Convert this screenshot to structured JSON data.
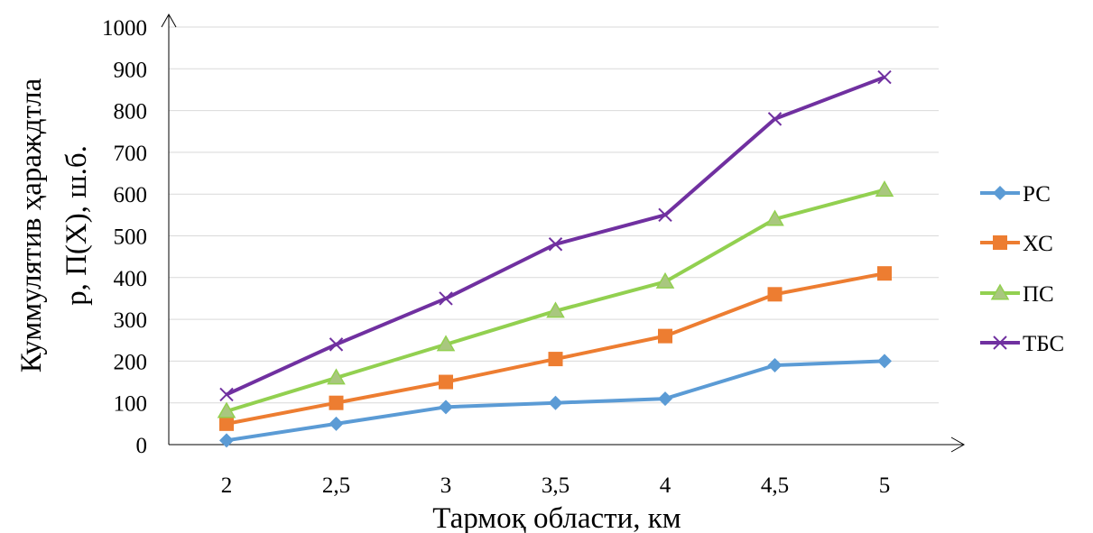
{
  "chart_data": {
    "type": "line",
    "xlabel": "Тармоқ области, км",
    "ylabel_lines": [
      "Куммулятив ҳараждтла",
      "р, П(Х), ш.б."
    ],
    "categories": [
      "2",
      "2,5",
      "3",
      "3,5",
      "4",
      "4,5",
      "5"
    ],
    "ylim": [
      0,
      1000
    ],
    "yticks": [
      0,
      100,
      200,
      300,
      400,
      500,
      600,
      700,
      800,
      900,
      1000
    ],
    "grid": true,
    "legend_position": "right",
    "series": [
      {
        "name": "РС",
        "color": "#5b9bd5",
        "marker": "diamond",
        "values": [
          10,
          50,
          90,
          100,
          110,
          190,
          200
        ]
      },
      {
        "name": "ХС",
        "color": "#ed7d31",
        "marker": "square",
        "values": [
          50,
          100,
          150,
          205,
          260,
          360,
          410
        ]
      },
      {
        "name": "ПС",
        "color": "#92d050",
        "marker": "triangle",
        "values": [
          80,
          160,
          240,
          320,
          390,
          540,
          610
        ]
      },
      {
        "name": "ТБС",
        "color": "#7030a0",
        "marker": "x",
        "values": [
          120,
          240,
          350,
          480,
          550,
          780,
          880
        ]
      }
    ]
  }
}
